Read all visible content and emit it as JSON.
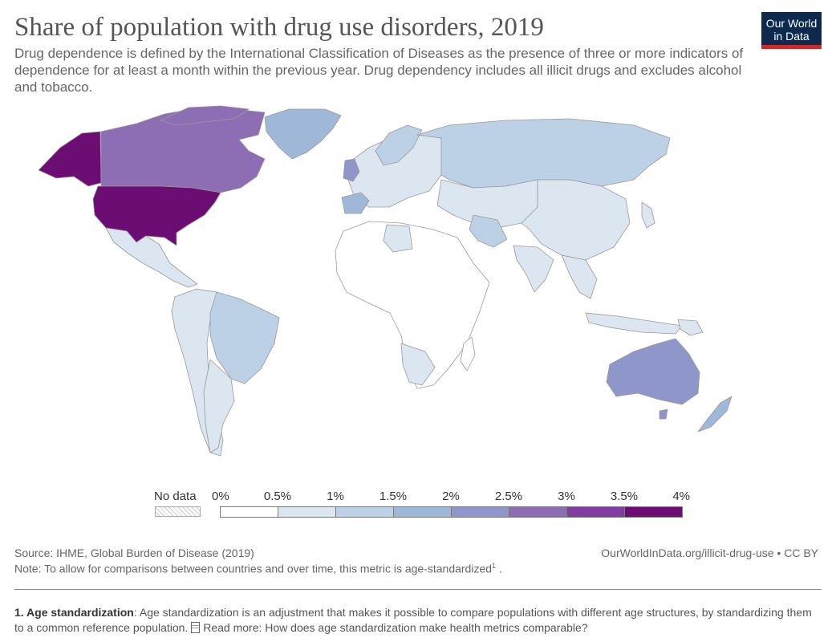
{
  "title": "Share of population with drug use disorders, 2019",
  "subtitle": "Drug dependence is defined by the International Classification of Diseases as the presence of three or more indicators of dependence for at least a month within the previous year. Drug dependency includes all illicit drugs and excludes alcohol and tobacco.",
  "logo": {
    "line1": "Our World",
    "line2": "in Data",
    "bg_color": "#0c2a4d",
    "accent_color": "#cf2a2a"
  },
  "legend": {
    "no_data_label": "No data",
    "ticks": [
      "0%",
      "0.5%",
      "1%",
      "1.5%",
      "2%",
      "2.5%",
      "3%",
      "3.5%",
      "4%"
    ],
    "colors": [
      "#ffffff",
      "#dbe6f1",
      "#bcd0e6",
      "#a0b8d8",
      "#8f96c9",
      "#8d6db4",
      "#813e9f",
      "#6c0d73"
    ]
  },
  "chart_data": {
    "type": "choropleth",
    "metric": "Share of population with drug use disorders (%)",
    "year": 2019,
    "approximate_values": [
      {
        "region": "United States",
        "value": 3.9
      },
      {
        "region": "Alaska (United States)",
        "value": 3.9
      },
      {
        "region": "Canada",
        "value": 2.9
      },
      {
        "region": "Australia",
        "value": 2.2
      },
      {
        "region": "United Kingdom",
        "value": 2.3
      },
      {
        "region": "New Zealand",
        "value": 1.8
      },
      {
        "region": "Greenland",
        "value": 1.4
      },
      {
        "region": "Brazil",
        "value": 1.2
      },
      {
        "region": "Russia",
        "value": 1.0
      },
      {
        "region": "Spain",
        "value": 1.3
      },
      {
        "region": "Iran",
        "value": 1.3
      },
      {
        "region": "China",
        "value": 0.8
      },
      {
        "region": "India",
        "value": 0.6
      },
      {
        "region": "Mexico",
        "value": 0.7
      },
      {
        "region": "Africa (most countries)",
        "value": 0.4
      }
    ]
  },
  "footer": {
    "source": "Source: IHME, Global Burden of Disease (2019)",
    "url": "OurWorldInData.org/illicit-drug-use • CC BY",
    "note_text": "Note: To allow for comparisons between countries and over time, this metric is age-standardized",
    "note_sup": "1",
    "note_end": "."
  },
  "footnote": {
    "heading": "1. Age standardization",
    "text": ": Age standardization is an adjustment that makes it possible to compare populations with different age structures, by standardizing them to a common reference population.",
    "link": "Read more: How does age standardization make health metrics comparable?"
  }
}
